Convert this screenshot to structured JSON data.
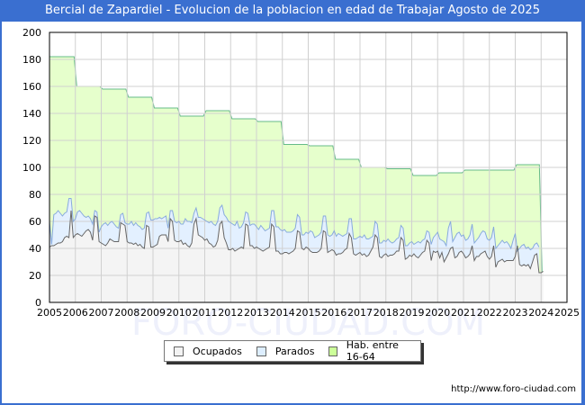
{
  "title": "Bercial de Zapardiel - Evolucion de la poblacion en edad de Trabajar Agosto de 2025",
  "credit": "http://www.foro-ciudad.com",
  "watermark": "FORO-CIUDAD.COM",
  "legend": [
    {
      "label": "Ocupados",
      "color": "#f3f3f3"
    },
    {
      "label": "Parados",
      "color": "#ddeeff"
    },
    {
      "label": "Hab. entre 16-64",
      "color": "#ccff99"
    }
  ],
  "chart_data": {
    "type": "area",
    "title": "Bercial de Zapardiel - Evolucion de la poblacion en edad de Trabajar Agosto de 2025",
    "xlabel": "",
    "ylabel": "",
    "ylim": [
      0,
      200
    ],
    "yticks": [
      0,
      20,
      40,
      60,
      80,
      100,
      120,
      140,
      160,
      180,
      200
    ],
    "xticks": [
      "2005",
      "2006",
      "2007",
      "2008",
      "2009",
      "2010",
      "2011",
      "2012",
      "2013",
      "2014",
      "2015",
      "2016",
      "2017",
      "2018",
      "2019",
      "2020",
      "2021",
      "2022",
      "2023",
      "2024",
      "2025"
    ],
    "grid": true,
    "legend_position": "bottom",
    "series": [
      {
        "name": "Hab. entre 16-64",
        "color": "#ccff99",
        "line_color": "#66bb88",
        "years": [
          2005,
          2006,
          2007,
          2008,
          2009,
          2010,
          2011,
          2012,
          2013,
          2014,
          2015,
          2016,
          2017,
          2018,
          2019,
          2020,
          2021,
          2022,
          2023
        ],
        "values": [
          182,
          160,
          158,
          152,
          144,
          138,
          142,
          136,
          134,
          117,
          116,
          106,
          100,
          99,
          94,
          96,
          98,
          98,
          102
        ]
      },
      {
        "name": "Parados",
        "color": "#ddeeff",
        "line_color": "#88aadd",
        "note": "total (Ocupados + Parados), monthly approximate",
        "start": 2005.0,
        "values": [
          60,
          43,
          65,
          66,
          68,
          66,
          64,
          66,
          67,
          77,
          77,
          60,
          62,
          67,
          68,
          66,
          64,
          63,
          64,
          62,
          58,
          68,
          67,
          52,
          56,
          58,
          59,
          57,
          59,
          60,
          58,
          56,
          55,
          65,
          66,
          59,
          58,
          58,
          60,
          57,
          59,
          57,
          56,
          54,
          55,
          66,
          67,
          61,
          61,
          62,
          62,
          63,
          62,
          63,
          64,
          55,
          68,
          68,
          60,
          59,
          60,
          58,
          58,
          62,
          60,
          60,
          59,
          66,
          70,
          63,
          63,
          62,
          61,
          60,
          59,
          60,
          58,
          57,
          60,
          70,
          72,
          65,
          63,
          60,
          59,
          58,
          57,
          60,
          55,
          56,
          59,
          67,
          66,
          57,
          58,
          58,
          56,
          54,
          57,
          55,
          53,
          54,
          55,
          68,
          68,
          56,
          56,
          54,
          53,
          54,
          52,
          52,
          52,
          53,
          55,
          65,
          63,
          50,
          50,
          52,
          51,
          53,
          52,
          48,
          49,
          50,
          52,
          64,
          64,
          50,
          49,
          50,
          53,
          49,
          51,
          50,
          49,
          50,
          51,
          62,
          62,
          47,
          47,
          48,
          49,
          48,
          50,
          47,
          47,
          48,
          49,
          60,
          58,
          44,
          44,
          46,
          45,
          47,
          45,
          44,
          45,
          47,
          48,
          57,
          55,
          42,
          42,
          44,
          45,
          43,
          44,
          45,
          44,
          46,
          47,
          53,
          52,
          43,
          48,
          50,
          52,
          47,
          46,
          45,
          42,
          55,
          60,
          45,
          48,
          51,
          52,
          49,
          50,
          46,
          47,
          50,
          58,
          44,
          46,
          48,
          51,
          53,
          52,
          47,
          46,
          48,
          56,
          40,
          42,
          44,
          46,
          44,
          45,
          43,
          40,
          46,
          51,
          38,
          40,
          42,
          43,
          40,
          41,
          39,
          40,
          43,
          44,
          41
        ]
      },
      {
        "name": "Ocupados",
        "color": "#f3f3f3",
        "line_color": "#666666",
        "note": "monthly approximate",
        "start": 2005.0,
        "values": [
          41,
          42,
          42,
          43,
          44,
          44,
          45,
          48,
          49,
          48,
          68,
          48,
          50,
          51,
          50,
          49,
          51,
          53,
          54,
          52,
          46,
          64,
          63,
          45,
          44,
          43,
          42,
          44,
          47,
          46,
          45,
          45,
          45,
          59,
          58,
          57,
          45,
          44,
          44,
          43,
          44,
          42,
          43,
          41,
          40,
          57,
          56,
          41,
          41,
          42,
          43,
          49,
          50,
          50,
          50,
          45,
          62,
          60,
          46,
          45,
          45,
          46,
          43,
          44,
          42,
          41,
          44,
          58,
          62,
          50,
          49,
          48,
          46,
          47,
          44,
          43,
          41,
          42,
          46,
          58,
          60,
          48,
          44,
          39,
          39,
          40,
          38,
          39,
          40,
          41,
          40,
          58,
          57,
          42,
          42,
          40,
          41,
          40,
          39,
          38,
          39,
          40,
          41,
          58,
          56,
          38,
          38,
          36,
          36,
          37,
          37,
          36,
          37,
          38,
          40,
          53,
          52,
          40,
          39,
          41,
          40,
          38,
          37,
          37,
          37,
          38,
          40,
          53,
          52,
          37,
          38,
          39,
          38,
          35,
          36,
          36,
          37,
          39,
          40,
          51,
          48,
          36,
          35,
          36,
          37,
          35,
          36,
          34,
          35,
          38,
          41,
          50,
          48,
          34,
          33,
          35,
          36,
          34,
          35,
          35,
          36,
          38,
          38,
          48,
          46,
          32,
          33,
          35,
          34,
          36,
          34,
          33,
          35,
          37,
          38,
          46,
          44,
          31,
          38,
          37,
          38,
          33,
          37,
          30,
          33,
          36,
          40,
          41,
          33,
          34,
          37,
          38,
          36,
          33,
          34,
          36,
          42,
          31,
          34,
          34,
          36,
          37,
          38,
          34,
          32,
          34,
          42,
          26,
          30,
          31,
          32,
          30,
          31,
          31,
          31,
          31,
          34,
          42,
          28,
          27,
          28,
          27,
          28,
          25,
          30,
          35,
          36,
          22,
          22,
          23
        ]
      }
    ]
  }
}
